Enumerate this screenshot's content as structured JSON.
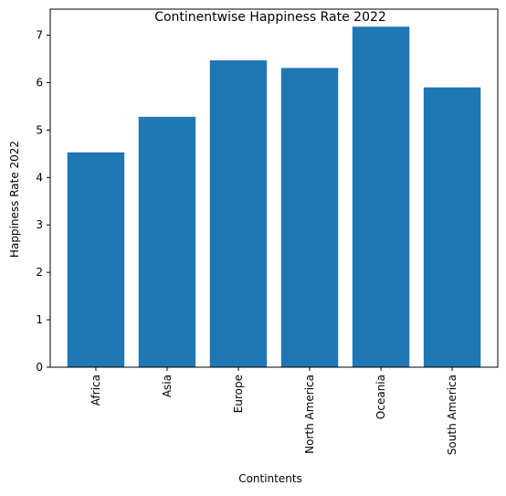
{
  "chart_data": {
    "type": "bar",
    "title": "Continentwise Happiness Rate 2022",
    "xlabel": "Contintents",
    "ylabel": "Happiness Rate 2022",
    "categories": [
      "Africa",
      "Asia",
      "Europe",
      "North America",
      "Oceania",
      "South America"
    ],
    "values": [
      4.53,
      5.28,
      6.47,
      6.31,
      7.18,
      5.9
    ],
    "ylim": [
      0,
      7.55
    ],
    "yticks": [
      "0",
      "1",
      "2",
      "3",
      "4",
      "5",
      "6",
      "7"
    ],
    "bar_color": "#1f77b4",
    "grid": false,
    "legend": "none"
  }
}
